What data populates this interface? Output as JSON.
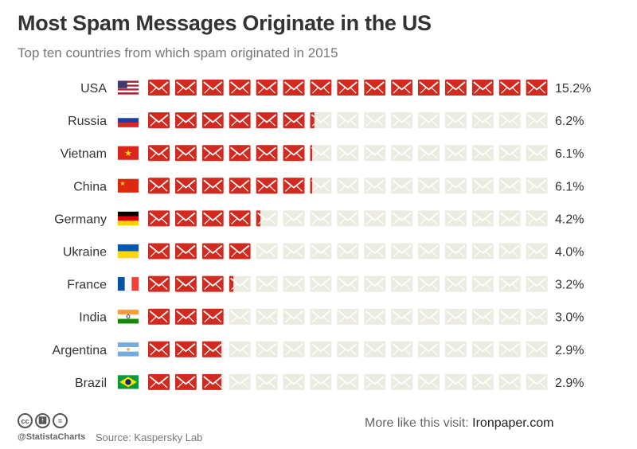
{
  "header": {
    "title": "Most Spam Messages Originate in the US",
    "subtitle": "Top ten countries from which spam originated in 2015"
  },
  "chart_data": {
    "type": "bar",
    "title": "Most Spam Messages Originate in the US",
    "subtitle": "Top ten countries from which spam originated in 2015",
    "unit": "%",
    "categories": [
      "USA",
      "Russia",
      "Vietnam",
      "China",
      "Germany",
      "Ukraine",
      "France",
      "India",
      "Argentina",
      "Brazil"
    ],
    "values": [
      15.2,
      6.2,
      6.1,
      6.1,
      4.2,
      4.0,
      3.2,
      3.0,
      2.9,
      2.9
    ],
    "value_labels": [
      "15.2%",
      "6.2%",
      "6.1%",
      "6.1%",
      "4.2%",
      "4.0%",
      "3.2%",
      "3.0%",
      "2.9%",
      "2.9%"
    ],
    "icons_total": 15,
    "percent_per_icon": 1,
    "flags": [
      "flag-usa",
      "flag-russia",
      "flag-vietnam",
      "flag-china",
      "flag-germany",
      "flag-ukraine",
      "flag-france",
      "flag-india",
      "flag-argentina",
      "flag-brazil"
    ],
    "colors": {
      "filled": "#d32a20",
      "empty": "#ecebe2",
      "text": "#333333"
    }
  },
  "footer": {
    "icons": [
      "cc-icon",
      "attribution-icon",
      "no-derivatives-icon"
    ],
    "handle": "@StatistaCharts",
    "source": "Source: Kaspersky Lab",
    "promo_text": "More like this visit: ",
    "promo_link": "Ironpaper.com"
  }
}
